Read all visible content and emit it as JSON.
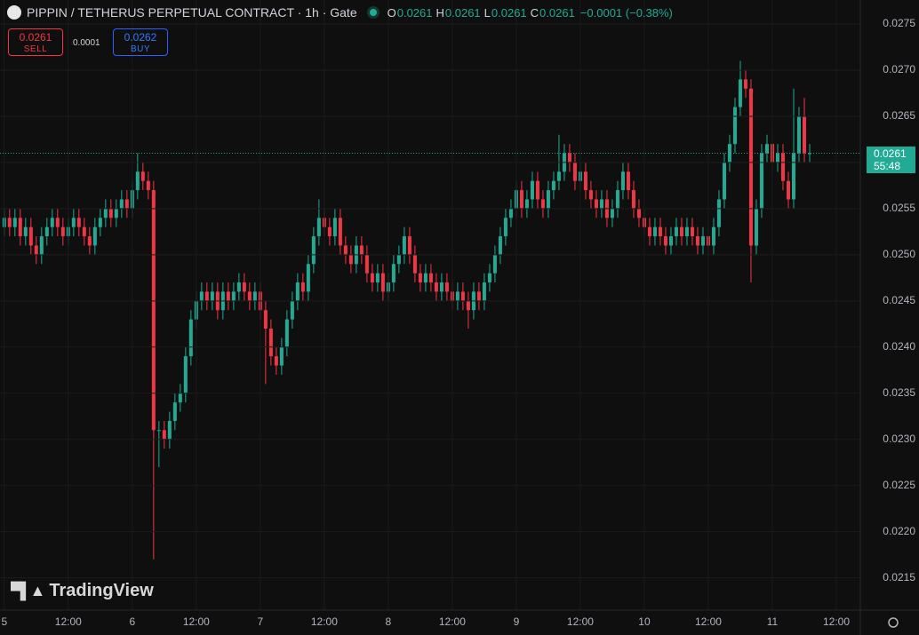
{
  "chart_data": {
    "type": "candlestick",
    "title": "PIPPIN / TETHERUS PERPETUAL CONTRACT · 1h · Gate",
    "legend": {
      "o_label": "O",
      "o": "0.0261",
      "h_label": "H",
      "h": "0.0261",
      "l_label": "L",
      "l": "0.0261",
      "c_label": "C",
      "c": "0.0261",
      "change": "−0.0001 (−0.38%)"
    },
    "sell": {
      "price": "0.0261",
      "label": "SELL"
    },
    "spread": "0.0001",
    "buy": {
      "price": "0.0262",
      "label": "BUY"
    },
    "watermark": "TradingView",
    "last_price": {
      "value": 0.0261,
      "label": "0.0261",
      "countdown": "55:48",
      "color": "#22ab94"
    },
    "up_color": "#22ab94",
    "down_color": "#f23645",
    "grid": true,
    "xlim": [
      -0.8,
      160.5
    ],
    "xticks": [
      {
        "value": 0,
        "label": "5"
      },
      {
        "value": 12,
        "label": "12:00"
      },
      {
        "value": 24,
        "label": "6"
      },
      {
        "value": 36,
        "label": "12:00"
      },
      {
        "value": 48,
        "label": "7"
      },
      {
        "value": 60,
        "label": "12:00"
      },
      {
        "value": 72,
        "label": "8"
      },
      {
        "value": 84,
        "label": "12:00"
      },
      {
        "value": 96,
        "label": "9"
      },
      {
        "value": 108,
        "label": "12:00"
      },
      {
        "value": 120,
        "label": "10"
      },
      {
        "value": 132,
        "label": "12:00"
      },
      {
        "value": 144,
        "label": "11"
      },
      {
        "value": 156,
        "label": "12:00"
      }
    ],
    "ylim": [
      0.02115,
      0.02776
    ],
    "yticks": [
      0.0215,
      {
        "value": 0.022,
        "label": "0.0220"
      },
      0.0225,
      {
        "value": 0.023,
        "label": "0.0230"
      },
      0.0235,
      {
        "value": 0.024,
        "label": "0.0240"
      },
      0.0245,
      {
        "value": 0.025,
        "label": "0.0250"
      },
      0.0255,
      {
        "value": 0.026,
        "label": "0.0260"
      },
      0.0265,
      {
        "value": 0.027,
        "label": "0.0270"
      },
      0.0275
    ],
    "open": [
      0.0253,
      0.0254,
      0.0253,
      0.0254,
      0.0252,
      0.0253,
      0.0251,
      0.025,
      0.0252,
      0.0253,
      0.0254,
      0.0253,
      0.0252,
      0.0253,
      0.0254,
      0.0253,
      0.0252,
      0.0251,
      0.0253,
      0.0254,
      0.0255,
      0.0254,
      0.0255,
      0.0256,
      0.0255,
      0.0257,
      0.0259,
      0.0258,
      0.0257,
      0.0231,
      0.0231,
      0.023,
      0.0232,
      0.0234,
      0.0235,
      0.0239,
      0.0243,
      0.0245,
      0.0246,
      0.0245,
      0.0246,
      0.0244,
      0.0246,
      0.0245,
      0.0246,
      0.0247,
      0.0246,
      0.0245,
      0.0246,
      0.0244,
      0.0242,
      0.0239,
      0.0238,
      0.024,
      0.0243,
      0.0245,
      0.0247,
      0.0246,
      0.0249,
      0.0252,
      0.0254,
      0.0253,
      0.0252,
      0.0254,
      0.0251,
      0.025,
      0.0249,
      0.0251,
      0.025,
      0.0248,
      0.0247,
      0.0248,
      0.0246,
      0.0247,
      0.0249,
      0.025,
      0.0252,
      0.025,
      0.0248,
      0.0247,
      0.0248,
      0.0247,
      0.0246,
      0.0247,
      0.0246,
      0.0245,
      0.0246,
      0.0245,
      0.0244,
      0.0246,
      0.0245,
      0.0247,
      0.0248,
      0.025,
      0.0252,
      0.0254,
      0.0255,
      0.0257,
      0.0255,
      0.0256,
      0.0258,
      0.0256,
      0.0255,
      0.0257,
      0.0258,
      0.0259,
      0.0261,
      0.026,
      0.0258,
      0.0259,
      0.0257,
      0.0256,
      0.0255,
      0.0256,
      0.0254,
      0.0255,
      0.0257,
      0.0259,
      0.0257,
      0.0255,
      0.0254,
      0.0253,
      0.0252,
      0.0253,
      0.0252,
      0.0251,
      0.0252,
      0.0253,
      0.0252,
      0.0253,
      0.0252,
      0.0251,
      0.0252,
      0.0251,
      0.0253,
      0.0256,
      0.026,
      0.0262,
      0.0266,
      0.0269,
      0.0268,
      0.0251,
      0.0255,
      0.0261,
      0.0262,
      0.026,
      0.0261,
      0.0258,
      0.0256,
      0.0261,
      0.0265,
      0.0261
    ],
    "high": [
      0.0255,
      0.0255,
      0.0255,
      0.0255,
      0.0254,
      0.0254,
      0.0252,
      0.0253,
      0.0254,
      0.0255,
      0.0255,
      0.0254,
      0.0254,
      0.0255,
      0.0255,
      0.0254,
      0.0253,
      0.0254,
      0.0255,
      0.0256,
      0.0256,
      0.0256,
      0.0257,
      0.0257,
      0.0258,
      0.0261,
      0.026,
      0.0259,
      0.0258,
      0.0232,
      0.0232,
      0.0233,
      0.0235,
      0.0236,
      0.024,
      0.0244,
      0.0246,
      0.0247,
      0.0247,
      0.0247,
      0.0247,
      0.0247,
      0.0247,
      0.0247,
      0.0248,
      0.0248,
      0.0247,
      0.0247,
      0.0247,
      0.0245,
      0.0243,
      0.024,
      0.0241,
      0.0244,
      0.0246,
      0.0248,
      0.0248,
      0.025,
      0.0253,
      0.0256,
      0.0255,
      0.0254,
      0.0255,
      0.0255,
      0.0252,
      0.0251,
      0.0252,
      0.0252,
      0.0251,
      0.0249,
      0.0249,
      0.0249,
      0.0248,
      0.025,
      0.0251,
      0.0253,
      0.0253,
      0.0251,
      0.0249,
      0.0249,
      0.0249,
      0.0248,
      0.0248,
      0.0248,
      0.0247,
      0.0247,
      0.0247,
      0.0246,
      0.0247,
      0.0247,
      0.0248,
      0.0249,
      0.0251,
      0.0253,
      0.0255,
      0.0256,
      0.0258,
      0.0258,
      0.0257,
      0.0259,
      0.0259,
      0.0257,
      0.0258,
      0.0259,
      0.0263,
      0.0262,
      0.0262,
      0.0261,
      0.026,
      0.026,
      0.0258,
      0.0257,
      0.0257,
      0.0257,
      0.0256,
      0.0258,
      0.026,
      0.026,
      0.0258,
      0.0256,
      0.0255,
      0.0254,
      0.0254,
      0.0254,
      0.0253,
      0.0253,
      0.0254,
      0.0254,
      0.0254,
      0.0254,
      0.0253,
      0.0253,
      0.0253,
      0.0254,
      0.0257,
      0.0261,
      0.0263,
      0.0267,
      0.0271,
      0.027,
      0.0269,
      0.0256,
      0.0262,
      0.0263,
      0.0263,
      0.0262,
      0.0262,
      0.0259,
      0.0268,
      0.0266,
      0.0267,
      0.0262
    ],
    "low": [
      0.0252,
      0.0252,
      0.0252,
      0.0251,
      0.0251,
      0.025,
      0.0249,
      0.0249,
      0.0251,
      0.0252,
      0.0252,
      0.0251,
      0.0251,
      0.0252,
      0.0252,
      0.0251,
      0.025,
      0.025,
      0.0252,
      0.0253,
      0.0253,
      0.0253,
      0.0254,
      0.0254,
      0.0254,
      0.0256,
      0.0257,
      0.0256,
      0.0217,
      0.0227,
      0.0229,
      0.0229,
      0.0231,
      0.0233,
      0.0234,
      0.0238,
      0.0242,
      0.0244,
      0.0244,
      0.0244,
      0.0243,
      0.0243,
      0.0244,
      0.0244,
      0.0245,
      0.0245,
      0.0244,
      0.0244,
      0.0243,
      0.0236,
      0.0238,
      0.0237,
      0.0237,
      0.0239,
      0.0242,
      0.0244,
      0.0245,
      0.0245,
      0.0248,
      0.0251,
      0.0252,
      0.0251,
      0.0251,
      0.025,
      0.0249,
      0.0248,
      0.0248,
      0.0249,
      0.0247,
      0.0246,
      0.0246,
      0.0245,
      0.0245,
      0.0246,
      0.0248,
      0.0249,
      0.0249,
      0.0247,
      0.0246,
      0.0246,
      0.0246,
      0.0245,
      0.0245,
      0.0245,
      0.0244,
      0.0244,
      0.0244,
      0.0242,
      0.0243,
      0.0244,
      0.0244,
      0.0246,
      0.0247,
      0.0249,
      0.0251,
      0.0253,
      0.0254,
      0.0254,
      0.0254,
      0.0255,
      0.0255,
      0.0254,
      0.0254,
      0.0256,
      0.0257,
      0.0258,
      0.0259,
      0.0257,
      0.0257,
      0.0256,
      0.0255,
      0.0254,
      0.0254,
      0.0253,
      0.0253,
      0.0254,
      0.0256,
      0.0256,
      0.0254,
      0.0253,
      0.0252,
      0.0251,
      0.0251,
      0.0251,
      0.025,
      0.025,
      0.0251,
      0.0251,
      0.0251,
      0.0251,
      0.025,
      0.025,
      0.025,
      0.025,
      0.0252,
      0.0255,
      0.0259,
      0.0261,
      0.0265,
      0.0267,
      0.0247,
      0.025,
      0.0254,
      0.026,
      0.0259,
      0.0259,
      0.0257,
      0.0255,
      0.0255,
      0.026,
      0.026,
      0.026
    ],
    "close": [
      0.0254,
      0.0253,
      0.0254,
      0.0252,
      0.0253,
      0.0251,
      0.025,
      0.0252,
      0.0253,
      0.0254,
      0.0253,
      0.0252,
      0.0253,
      0.0254,
      0.0253,
      0.0252,
      0.0251,
      0.0253,
      0.0254,
      0.0255,
      0.0254,
      0.0255,
      0.0256,
      0.0255,
      0.0257,
      0.0259,
      0.0258,
      0.0257,
      0.0231,
      0.0231,
      0.023,
      0.0232,
      0.0234,
      0.0235,
      0.0239,
      0.0243,
      0.0245,
      0.0246,
      0.0245,
      0.0246,
      0.0244,
      0.0246,
      0.0245,
      0.0246,
      0.0247,
      0.0246,
      0.0245,
      0.0246,
      0.0244,
      0.0242,
      0.0239,
      0.0238,
      0.024,
      0.0243,
      0.0245,
      0.0247,
      0.0246,
      0.0249,
      0.0252,
      0.0254,
      0.0253,
      0.0252,
      0.0254,
      0.0251,
      0.025,
      0.0249,
      0.0251,
      0.025,
      0.0248,
      0.0247,
      0.0248,
      0.0246,
      0.0247,
      0.0249,
      0.025,
      0.0252,
      0.025,
      0.0248,
      0.0247,
      0.0248,
      0.0247,
      0.0246,
      0.0247,
      0.0246,
      0.0245,
      0.0246,
      0.0245,
      0.0244,
      0.0246,
      0.0245,
      0.0247,
      0.0248,
      0.025,
      0.0252,
      0.0254,
      0.0255,
      0.0257,
      0.0255,
      0.0256,
      0.0258,
      0.0256,
      0.0255,
      0.0257,
      0.0258,
      0.0259,
      0.0261,
      0.026,
      0.0258,
      0.0259,
      0.0257,
      0.0256,
      0.0255,
      0.0256,
      0.0254,
      0.0255,
      0.0257,
      0.0259,
      0.0257,
      0.0255,
      0.0254,
      0.0253,
      0.0252,
      0.0253,
      0.0252,
      0.0251,
      0.0252,
      0.0253,
      0.0252,
      0.0253,
      0.0252,
      0.0251,
      0.0252,
      0.0251,
      0.0253,
      0.0256,
      0.026,
      0.0262,
      0.0266,
      0.0269,
      0.0268,
      0.0251,
      0.0255,
      0.0261,
      0.0262,
      0.026,
      0.0261,
      0.0258,
      0.0256,
      0.0261,
      0.0265,
      0.0261,
      0.0261
    ]
  }
}
